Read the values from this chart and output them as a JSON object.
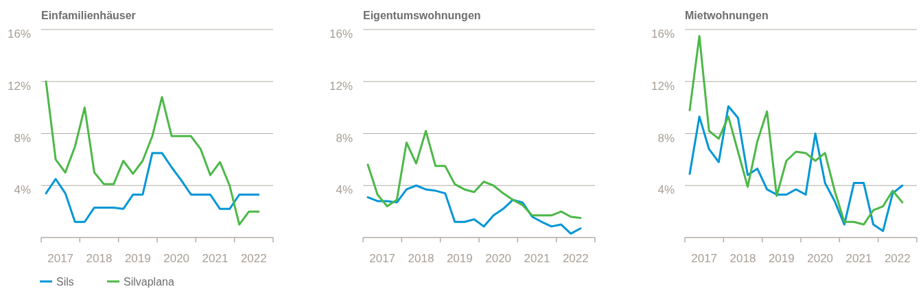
{
  "chart_data": [
    {
      "type": "line",
      "title": "Einfamilienhäuser",
      "legend": "bottom left",
      "grid": "y",
      "xlim": [
        2017,
        2023
      ],
      "ylim": [
        0,
        16
      ],
      "xticks": [
        {
          "value": 2017,
          "label": null
        },
        {
          "value": 2017.5,
          "label": "2017"
        },
        {
          "value": 2018,
          "label": null
        },
        {
          "value": 2018.5,
          "label": "2018"
        },
        {
          "value": 2019,
          "label": null
        },
        {
          "value": 2019.5,
          "label": "2019"
        },
        {
          "value": 2020,
          "label": null
        },
        {
          "value": 2020.5,
          "label": "2020"
        },
        {
          "value": 2021,
          "label": null
        },
        {
          "value": 2021.5,
          "label": "2021"
        },
        {
          "value": 2022,
          "label": null
        },
        {
          "value": 2022.5,
          "label": "2022"
        },
        {
          "value": 2023,
          "label": null
        }
      ],
      "yticks": [
        {
          "value": 4,
          "label": "4%"
        },
        {
          "value": 8,
          "label": "8%"
        },
        {
          "value": 12,
          "label": "12%"
        },
        {
          "value": 16,
          "label": "16%"
        }
      ],
      "x": [
        2017.125,
        2017.375,
        2017.625,
        2017.875,
        2018.125,
        2018.375,
        2018.625,
        2018.875,
        2019.125,
        2019.375,
        2019.625,
        2019.875,
        2020.125,
        2020.375,
        2020.625,
        2020.875,
        2021.125,
        2021.375,
        2021.625,
        2021.875,
        2022.125,
        2022.375,
        2022.625
      ],
      "series": [
        {
          "name": "Sils",
          "color": "#0096d6",
          "values": [
            3.4,
            4.5,
            3.4,
            1.2,
            1.2,
            2.3,
            2.3,
            2.3,
            2.2,
            3.3,
            3.3,
            6.5,
            6.5,
            5.4,
            4.4,
            3.3,
            3.3,
            3.3,
            2.2,
            2.2,
            3.3,
            3.3,
            3.3
          ]
        },
        {
          "name": "Silvaplana",
          "color": "#4cb847",
          "values": [
            12.0,
            6.0,
            5.0,
            7.0,
            10.0,
            5.0,
            4.1,
            4.1,
            5.9,
            4.9,
            5.9,
            7.8,
            10.8,
            7.8,
            7.8,
            7.8,
            6.8,
            4.8,
            5.8,
            4.0,
            1.0,
            2.0,
            2.0
          ]
        }
      ]
    },
    {
      "type": "line",
      "title": "Eigentumswohnungen",
      "grid": "y",
      "xlim": [
        2017,
        2023
      ],
      "ylim": [
        0,
        16
      ],
      "xticks": [
        {
          "value": 2017,
          "label": null
        },
        {
          "value": 2017.5,
          "label": "2017"
        },
        {
          "value": 2018,
          "label": null
        },
        {
          "value": 2018.5,
          "label": "2018"
        },
        {
          "value": 2019,
          "label": null
        },
        {
          "value": 2019.5,
          "label": "2019"
        },
        {
          "value": 2020,
          "label": null
        },
        {
          "value": 2020.5,
          "label": "2020"
        },
        {
          "value": 2021,
          "label": null
        },
        {
          "value": 2021.5,
          "label": "2021"
        },
        {
          "value": 2022,
          "label": null
        },
        {
          "value": 2022.5,
          "label": "2022"
        },
        {
          "value": 2023,
          "label": null
        }
      ],
      "yticks": [
        {
          "value": 4,
          "label": "4%"
        },
        {
          "value": 8,
          "label": "8%"
        },
        {
          "value": 12,
          "label": "12%"
        },
        {
          "value": 16,
          "label": "16%"
        }
      ],
      "x": [
        2017.125,
        2017.375,
        2017.625,
        2017.875,
        2018.125,
        2018.375,
        2018.625,
        2018.875,
        2019.125,
        2019.375,
        2019.625,
        2019.875,
        2020.125,
        2020.375,
        2020.625,
        2020.875,
        2021.125,
        2021.375,
        2021.625,
        2021.875,
        2022.125,
        2022.375,
        2022.625
      ],
      "series": [
        {
          "color": "#0096d6",
          "values": [
            3.1,
            2.8,
            2.8,
            2.7,
            3.7,
            4.0,
            3.7,
            3.6,
            3.4,
            1.2,
            1.2,
            1.4,
            0.85,
            1.7,
            2.2,
            2.9,
            2.7,
            1.6,
            1.2,
            0.85,
            1.0,
            0.3,
            0.7
          ]
        },
        {
          "color": "#4cb847",
          "values": [
            5.6,
            3.3,
            2.4,
            2.9,
            7.3,
            5.7,
            8.2,
            5.5,
            5.5,
            4.1,
            3.7,
            3.5,
            4.3,
            4.0,
            3.4,
            2.9,
            2.5,
            1.7,
            1.7,
            1.7,
            2.0,
            1.6,
            1.5
          ]
        }
      ]
    },
    {
      "type": "line",
      "title": "Mietwohnungen",
      "grid": "y",
      "xlim": [
        2017,
        2023
      ],
      "ylim": [
        0,
        16
      ],
      "xticks": [
        {
          "value": 2017,
          "label": null
        },
        {
          "value": 2017.5,
          "label": "2017"
        },
        {
          "value": 2018,
          "label": null
        },
        {
          "value": 2018.5,
          "label": "2018"
        },
        {
          "value": 2019,
          "label": null
        },
        {
          "value": 2019.5,
          "label": "2019"
        },
        {
          "value": 2020,
          "label": null
        },
        {
          "value": 2020.5,
          "label": "2020"
        },
        {
          "value": 2021,
          "label": null
        },
        {
          "value": 2021.5,
          "label": "2021"
        },
        {
          "value": 2022,
          "label": null
        },
        {
          "value": 2022.5,
          "label": "2022"
        },
        {
          "value": 2023,
          "label": null
        }
      ],
      "yticks": [
        {
          "value": 4,
          "label": "4%"
        },
        {
          "value": 8,
          "label": "8%"
        },
        {
          "value": 12,
          "label": "12%"
        },
        {
          "value": 16,
          "label": "16%"
        }
      ],
      "x": [
        2017.125,
        2017.375,
        2017.625,
        2017.875,
        2018.125,
        2018.375,
        2018.625,
        2018.875,
        2019.125,
        2019.375,
        2019.625,
        2019.875,
        2020.125,
        2020.375,
        2020.625,
        2020.875,
        2021.125,
        2021.375,
        2021.625,
        2021.875,
        2022.125,
        2022.375,
        2022.625
      ],
      "series": [
        {
          "color": "#0096d6",
          "values": [
            4.9,
            9.3,
            6.8,
            5.8,
            10.1,
            9.2,
            4.8,
            5.3,
            3.7,
            3.3,
            3.3,
            3.7,
            3.3,
            8.0,
            4.2,
            2.8,
            1.0,
            4.2,
            4.2,
            1.0,
            0.5,
            3.4,
            4.0
          ]
        },
        {
          "color": "#4cb847",
          "values": [
            9.8,
            15.5,
            8.2,
            7.6,
            9.3,
            6.6,
            3.9,
            7.4,
            9.7,
            3.2,
            5.9,
            6.6,
            6.5,
            5.9,
            6.5,
            3.6,
            1.2,
            1.2,
            1.0,
            2.1,
            2.4,
            3.6,
            2.7
          ]
        }
      ]
    }
  ]
}
